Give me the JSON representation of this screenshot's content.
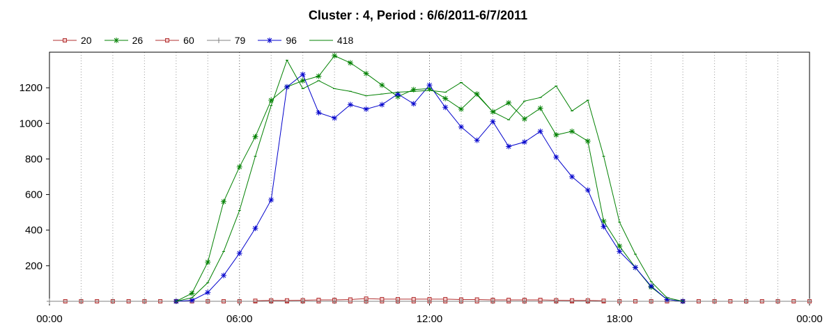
{
  "chart_data": {
    "type": "line",
    "title": "Cluster : 4, Period : 6/6/2011-6/7/2011",
    "xlabel": "",
    "ylabel": "",
    "xlim": [
      0,
      24
    ],
    "ylim": [
      0,
      1400
    ],
    "x_ticks": [
      {
        "value": 0,
        "label": "00:00"
      },
      {
        "value": 6,
        "label": "06:00"
      },
      {
        "value": 12,
        "label": "12:00"
      },
      {
        "value": 18,
        "label": "18:00"
      },
      {
        "value": 24,
        "label": "00:00"
      }
    ],
    "y_ticks": [
      200,
      400,
      600,
      800,
      1000,
      1200
    ],
    "grid": "vertical dotted",
    "legend_position": "top-left",
    "series": [
      {
        "name": "20",
        "color": "#b03030",
        "marker": "square",
        "x": [
          0.5,
          1,
          1.5,
          2,
          2.5,
          3,
          3.5,
          4,
          4.5,
          5,
          5.5,
          6,
          6.5,
          7,
          7.5,
          8,
          8.5,
          9,
          9.5,
          10,
          10.5,
          11,
          11.5,
          12,
          12.5,
          13,
          13.5,
          14,
          14.5,
          15,
          15.5,
          16,
          16.5,
          17,
          17.5,
          18,
          18.5,
          19,
          19.5,
          20,
          20.5,
          21,
          21.5,
          22,
          22.5,
          23,
          23.5,
          24
        ],
        "values": [
          0,
          0,
          0,
          0,
          0,
          0,
          0,
          0,
          0,
          0,
          0,
          0,
          0,
          0,
          0,
          0,
          0,
          0,
          0,
          0,
          0,
          0,
          0,
          0,
          0,
          0,
          0,
          0,
          0,
          0,
          0,
          0,
          0,
          0,
          0,
          0,
          0,
          0,
          0,
          0,
          0,
          0,
          0,
          0,
          0,
          0,
          0,
          0
        ]
      },
      {
        "name": "26",
        "color": "#008000",
        "marker": "star",
        "x": [
          4,
          4.5,
          5,
          5.5,
          6,
          6.5,
          7,
          7.5,
          8,
          8.5,
          9,
          9.5,
          10,
          10.5,
          11,
          11.5,
          12,
          12.5,
          13,
          13.5,
          14,
          14.5,
          15,
          15.5,
          16,
          16.5,
          17,
          17.5,
          18,
          18.5,
          19,
          19.5,
          20
        ],
        "values": [
          0,
          45,
          220,
          560,
          755,
          925,
          1130,
          1205,
          1240,
          1265,
          1380,
          1340,
          1280,
          1215,
          1150,
          1190,
          1195,
          1140,
          1080,
          1165,
          1065,
          1115,
          1025,
          1085,
          935,
          955,
          900,
          450,
          310,
          190,
          80,
          10,
          0
        ]
      },
      {
        "name": "60",
        "color": "#b03030",
        "marker": "square",
        "x": [
          6.5,
          7,
          7.5,
          8,
          8.5,
          9,
          9.5,
          10,
          10.5,
          11,
          11.5,
          12,
          12.5,
          13,
          13.5,
          14,
          14.5,
          15,
          15.5,
          16,
          16.5,
          17,
          17.5
        ],
        "values": [
          3,
          5,
          5,
          6,
          8,
          8,
          10,
          15,
          12,
          12,
          12,
          12,
          12,
          10,
          10,
          8,
          8,
          8,
          8,
          6,
          5,
          5,
          3
        ]
      },
      {
        "name": "79",
        "color": "#808080",
        "marker": "plus",
        "x": [
          0,
          1,
          2,
          3,
          4,
          5,
          6,
          7,
          8,
          9,
          10,
          11,
          12,
          13,
          14,
          15,
          16,
          17,
          18,
          19,
          20,
          21,
          22,
          23,
          24
        ],
        "values": [
          0,
          0,
          0,
          0,
          0,
          0,
          0,
          0,
          0,
          0,
          0,
          0,
          0,
          0,
          0,
          0,
          0,
          0,
          0,
          0,
          0,
          0,
          0,
          0,
          0
        ]
      },
      {
        "name": "96",
        "color": "#0000cc",
        "marker": "star",
        "x": [
          4,
          4.5,
          5,
          5.5,
          6,
          6.5,
          7,
          7.5,
          8,
          8.5,
          9,
          9.5,
          10,
          10.5,
          11,
          11.5,
          12,
          12.5,
          13,
          13.5,
          14,
          14.5,
          15,
          15.5,
          16,
          16.5,
          17,
          17.5,
          18,
          18.5,
          19,
          19.5,
          20
        ],
        "values": [
          0,
          5,
          50,
          145,
          270,
          410,
          570,
          1205,
          1275,
          1060,
          1030,
          1105,
          1080,
          1105,
          1165,
          1110,
          1215,
          1090,
          980,
          905,
          1010,
          870,
          895,
          955,
          810,
          700,
          625,
          420,
          280,
          190,
          85,
          10,
          0
        ]
      },
      {
        "name": "418",
        "color": "#008000",
        "marker": "tick",
        "x": [
          4,
          4.5,
          5,
          5.5,
          6,
          6.5,
          7,
          7.5,
          8,
          8.5,
          9,
          9.5,
          10,
          10.5,
          11,
          11.5,
          12,
          12.5,
          13,
          13.5,
          14,
          14.5,
          15,
          15.5,
          16,
          16.5,
          17,
          17.5,
          18,
          18.5,
          19,
          19.5,
          20
        ],
        "values": [
          0,
          20,
          105,
          280,
          510,
          815,
          1100,
          1355,
          1195,
          1240,
          1195,
          1180,
          1155,
          1165,
          1175,
          1180,
          1185,
          1175,
          1230,
          1160,
          1065,
          1020,
          1125,
          1145,
          1210,
          1070,
          1130,
          815,
          445,
          265,
          110,
          20,
          0
        ]
      }
    ]
  }
}
